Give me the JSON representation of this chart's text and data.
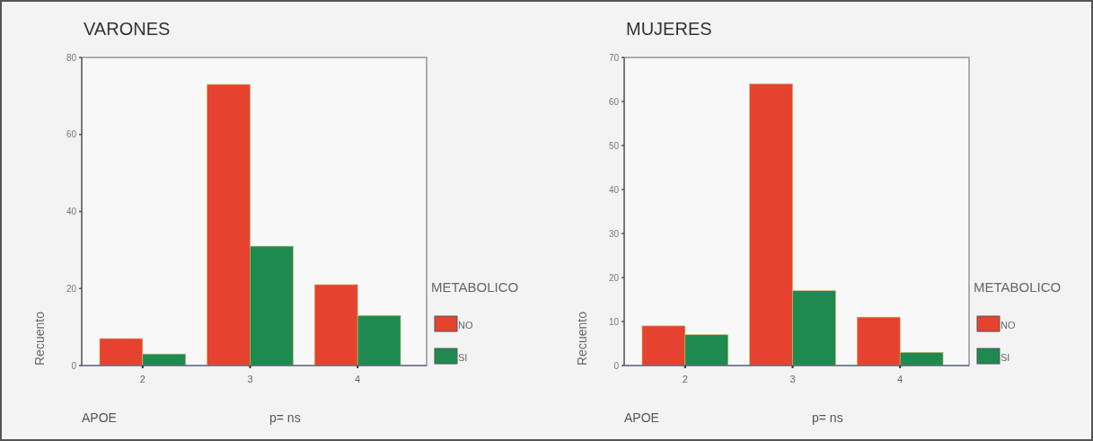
{
  "chart_data": [
    {
      "type": "bar",
      "title": "VARONES",
      "xlabel": "APOE",
      "ylabel": "Recuento",
      "legend_title": "METABOLICO",
      "annotations": [
        "p= ns"
      ],
      "categories": [
        "2",
        "3",
        "4"
      ],
      "series": [
        {
          "name": "NO",
          "color": "#e5432f",
          "values": [
            7,
            73,
            21
          ]
        },
        {
          "name": "SI",
          "color": "#1f8a50",
          "values": [
            3,
            31,
            13
          ]
        }
      ],
      "ylim": [
        0,
        80
      ],
      "yticks": [
        0,
        20,
        40,
        60,
        80
      ],
      "legend": "right"
    },
    {
      "type": "bar",
      "title": "MUJERES",
      "xlabel": "APOE",
      "ylabel": "Recuento",
      "legend_title": "METABOLICO",
      "annotations": [
        "p= ns"
      ],
      "categories": [
        "2",
        "3",
        "4"
      ],
      "series": [
        {
          "name": "NO",
          "color": "#e5432f",
          "values": [
            9,
            64,
            11
          ]
        },
        {
          "name": "SI",
          "color": "#1f8a50",
          "values": [
            7,
            17,
            3
          ]
        }
      ],
      "ylim": [
        0,
        70
      ],
      "yticks": [
        0,
        10,
        20,
        30,
        40,
        50,
        60,
        70
      ],
      "legend": "right"
    }
  ]
}
